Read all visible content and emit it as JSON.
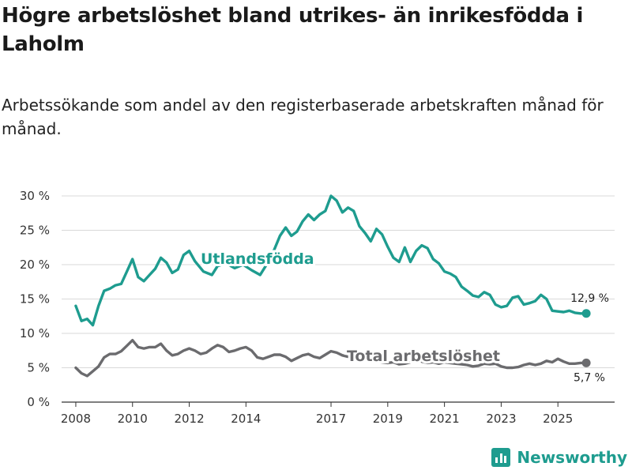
{
  "header": {
    "title": "Högre arbetslöshet bland utrikes- än inrikesfödda i Laholm",
    "subtitle": "Arbetssökande som andel av den registerbaserade arbetskraften månad för månad."
  },
  "brand": {
    "name": "Newsworthy",
    "icon": "bar-chart-icon",
    "color": "#1e9c8f"
  },
  "chart_data": {
    "type": "line",
    "title": "Högre arbetslöshet bland utrikes- än inrikesfödda i Laholm",
    "xlabel": "",
    "ylabel": "",
    "xlim": [
      2007.5,
      2027.0
    ],
    "ylim": [
      0,
      30
    ],
    "y_ticks": [
      0,
      5,
      10,
      15,
      20,
      25,
      30
    ],
    "y_tick_labels": [
      "0 %",
      "5 %",
      "10 %",
      "15 %",
      "20 %",
      "25 %",
      "30 %"
    ],
    "x_ticks": [
      2008,
      2010,
      2012,
      2014,
      2017,
      2019,
      2021,
      2023,
      2025
    ],
    "x_tick_labels": [
      "2008",
      "2010",
      "2012",
      "2014",
      "2017",
      "2019",
      "2021",
      "2023",
      "2025"
    ],
    "grid": "horizontal",
    "series": [
      {
        "name": "Utlandsfödda",
        "color": "#1e9c8f",
        "end_label": "12,9 %",
        "x": [
          2008.0,
          2008.2,
          2008.4,
          2008.6,
          2008.8,
          2009.0,
          2009.2,
          2009.4,
          2009.6,
          2009.8,
          2010.0,
          2010.2,
          2010.4,
          2010.6,
          2010.8,
          2011.0,
          2011.2,
          2011.4,
          2011.6,
          2011.8,
          2012.0,
          2012.2,
          2012.5,
          2012.8,
          2013.0,
          2013.3,
          2013.6,
          2013.9,
          2014.2,
          2014.5,
          2014.8,
          2015.0,
          2015.2,
          2015.4,
          2015.6,
          2015.8,
          2016.0,
          2016.2,
          2016.4,
          2016.6,
          2016.8,
          2017.0,
          2017.2,
          2017.4,
          2017.6,
          2017.8,
          2018.0,
          2018.2,
          2018.4,
          2018.6,
          2018.8,
          2019.0,
          2019.2,
          2019.4,
          2019.6,
          2019.8,
          2020.0,
          2020.2,
          2020.4,
          2020.6,
          2020.8,
          2021.0,
          2021.2,
          2021.4,
          2021.6,
          2021.8,
          2022.0,
          2022.2,
          2022.4,
          2022.6,
          2022.8,
          2023.0,
          2023.2,
          2023.4,
          2023.6,
          2023.8,
          2024.0,
          2024.2,
          2024.4,
          2024.6,
          2024.8,
          2025.0,
          2025.2,
          2025.4,
          2025.6,
          2025.8,
          2026.0
        ],
        "values": [
          14.0,
          11.8,
          12.1,
          11.2,
          14.0,
          16.2,
          16.5,
          17.0,
          17.2,
          19.0,
          20.8,
          18.2,
          17.6,
          18.5,
          19.4,
          21.0,
          20.3,
          18.8,
          19.3,
          21.4,
          22.0,
          20.5,
          19.0,
          18.5,
          19.8,
          20.2,
          19.5,
          20.0,
          19.2,
          18.5,
          20.5,
          22.2,
          24.2,
          25.4,
          24.2,
          24.8,
          26.3,
          27.3,
          26.5,
          27.3,
          27.8,
          30.0,
          29.3,
          27.6,
          28.3,
          27.8,
          25.6,
          24.6,
          23.4,
          25.2,
          24.4,
          22.6,
          21.0,
          20.4,
          22.5,
          20.4,
          22.0,
          22.8,
          22.4,
          20.8,
          20.2,
          19.0,
          18.7,
          18.2,
          16.8,
          16.2,
          15.5,
          15.3,
          16.0,
          15.6,
          14.2,
          13.8,
          14.0,
          15.2,
          15.4,
          14.2,
          14.4,
          14.7,
          15.6,
          15.0,
          13.3,
          13.2,
          13.1,
          13.3,
          13.0,
          12.9,
          12.9
        ]
      },
      {
        "name": "Total arbetslöshet",
        "color": "#6b6b6e",
        "end_label": "5,7 %",
        "x": [
          2008.0,
          2008.2,
          2008.4,
          2008.6,
          2008.8,
          2009.0,
          2009.2,
          2009.4,
          2009.6,
          2009.8,
          2010.0,
          2010.2,
          2010.4,
          2010.6,
          2010.8,
          2011.0,
          2011.2,
          2011.4,
          2011.6,
          2011.8,
          2012.0,
          2012.2,
          2012.4,
          2012.6,
          2012.8,
          2013.0,
          2013.2,
          2013.4,
          2013.6,
          2013.8,
          2014.0,
          2014.2,
          2014.4,
          2014.6,
          2014.8,
          2015.0,
          2015.2,
          2015.4,
          2015.6,
          2015.8,
          2016.0,
          2016.2,
          2016.4,
          2016.6,
          2016.8,
          2017.0,
          2017.2,
          2017.4,
          2017.6,
          2017.8,
          2018.0,
          2018.2,
          2018.4,
          2018.6,
          2018.8,
          2019.0,
          2019.2,
          2019.4,
          2019.6,
          2019.8,
          2020.0,
          2020.2,
          2020.4,
          2020.6,
          2020.8,
          2021.0,
          2021.2,
          2021.4,
          2021.6,
          2021.8,
          2022.0,
          2022.2,
          2022.4,
          2022.6,
          2022.8,
          2023.0,
          2023.2,
          2023.4,
          2023.6,
          2023.8,
          2024.0,
          2024.2,
          2024.4,
          2024.6,
          2024.8,
          2025.0,
          2025.2,
          2025.4,
          2025.6,
          2025.8,
          2026.0
        ],
        "values": [
          5.0,
          4.2,
          3.8,
          4.5,
          5.2,
          6.5,
          7.0,
          7.0,
          7.4,
          8.2,
          9.0,
          8.0,
          7.8,
          8.0,
          8.0,
          8.5,
          7.5,
          6.8,
          7.0,
          7.5,
          7.8,
          7.5,
          7.0,
          7.2,
          7.8,
          8.3,
          8.0,
          7.3,
          7.5,
          7.8,
          8.0,
          7.5,
          6.5,
          6.3,
          6.6,
          6.9,
          6.9,
          6.6,
          6.0,
          6.4,
          6.8,
          7.0,
          6.6,
          6.4,
          6.9,
          7.4,
          7.2,
          6.8,
          6.6,
          6.6,
          6.6,
          6.4,
          6.0,
          5.9,
          5.8,
          5.7,
          5.8,
          5.5,
          5.6,
          5.8,
          6.2,
          5.9,
          5.7,
          5.8,
          5.6,
          5.8,
          5.7,
          5.6,
          5.5,
          5.4,
          5.2,
          5.3,
          5.6,
          5.5,
          5.6,
          5.2,
          5.0,
          5.0,
          5.1,
          5.4,
          5.6,
          5.4,
          5.6,
          6.0,
          5.8,
          6.3,
          5.9,
          5.6,
          5.6,
          5.7,
          5.7
        ]
      }
    ]
  }
}
